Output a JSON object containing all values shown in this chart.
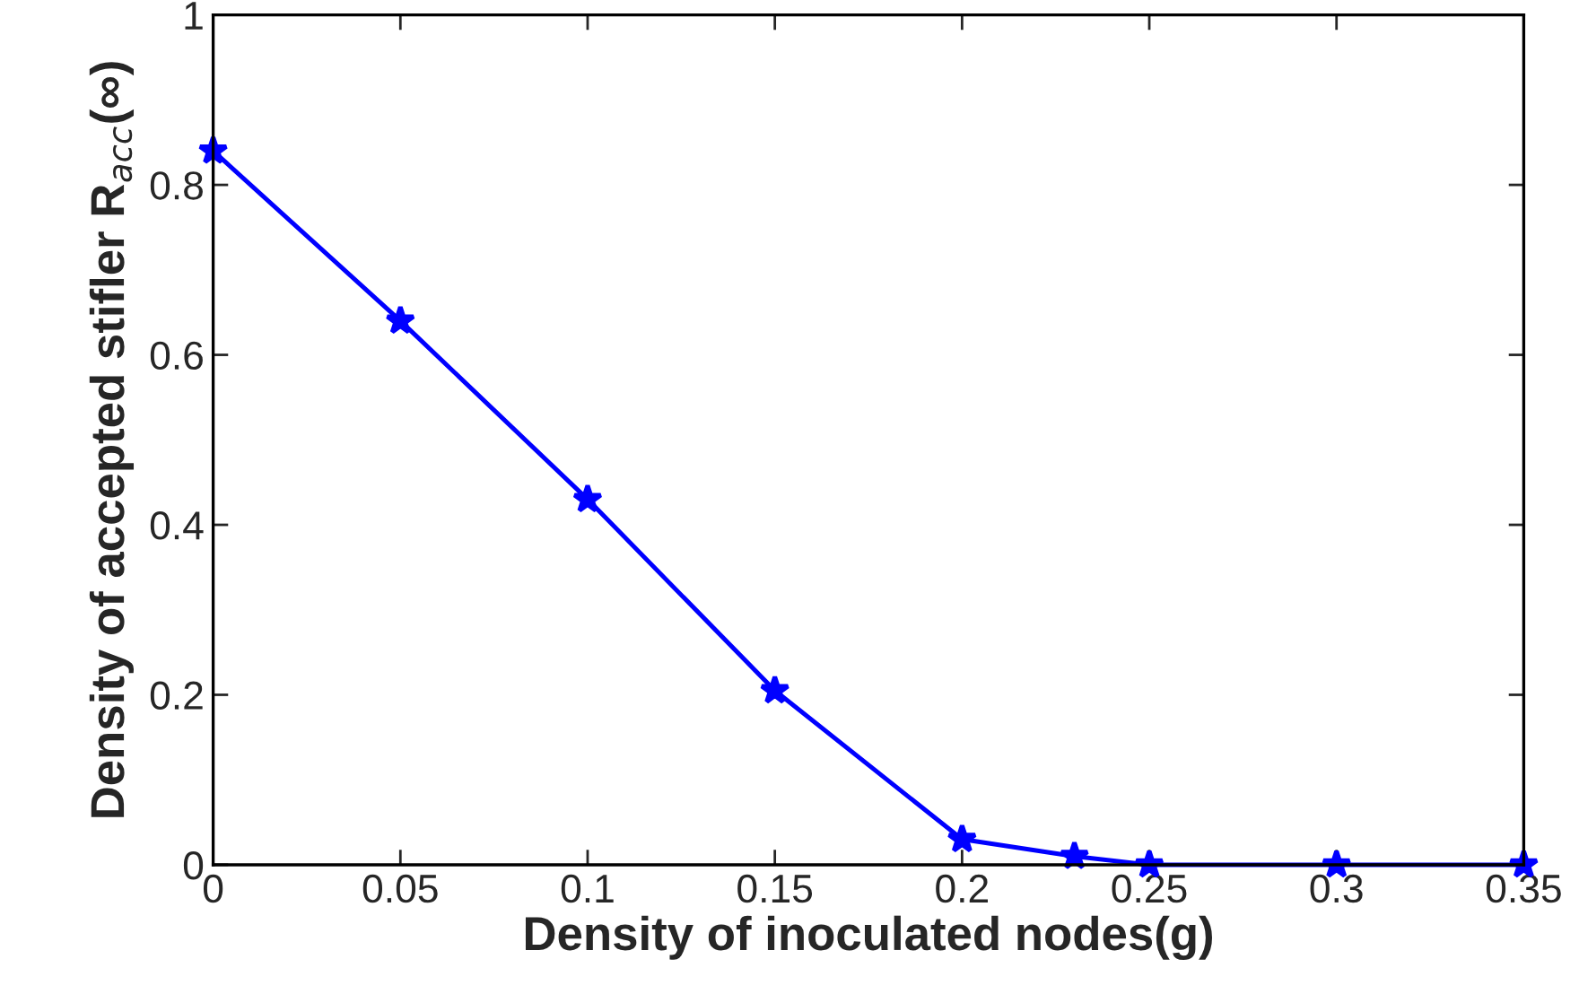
{
  "chart_data": {
    "type": "line",
    "xlabel": "Density of inoculated nodes(g)",
    "ylabel": "Density of accepted stifler R$_{acc}$(∞)",
    "x": [
      0,
      0.05,
      0.1,
      0.15,
      0.2,
      0.23,
      0.25,
      0.3,
      0.35
    ],
    "series": [
      {
        "color": "#0000ff",
        "values": [
          0.84,
          0.64,
          0.43,
          0.205,
          0.03,
          0.01,
          0,
          0,
          0
        ]
      }
    ],
    "xlim": [
      0,
      0.35
    ],
    "xticks": [
      0,
      0.05,
      0.1,
      0.15,
      0.2,
      0.25,
      0.3,
      0.35
    ],
    "ylim": [
      0,
      1
    ],
    "yticks": [
      0,
      0.2,
      0.4,
      0.6,
      0.8,
      1
    ],
    "grid": false,
    "legend": false,
    "marker": "star",
    "line_style": "solid"
  }
}
